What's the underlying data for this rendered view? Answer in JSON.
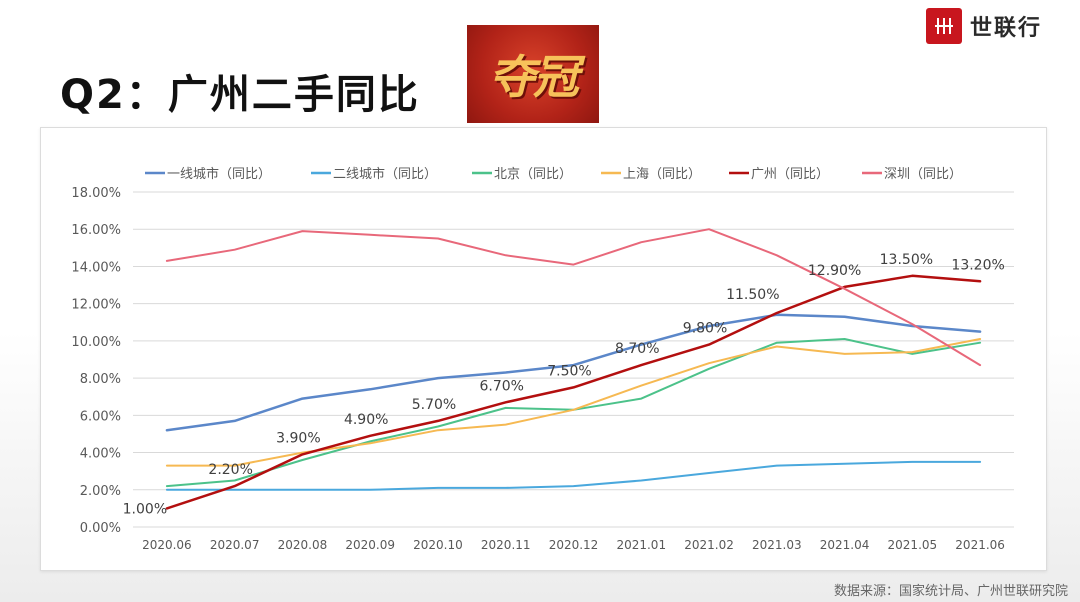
{
  "slide": {
    "title": "Q2：广州二手同比",
    "badge": "夺冠",
    "logo_text": "世联行",
    "source": "数据来源：国家统计局、广州世联研究院"
  },
  "chart_data": {
    "type": "line",
    "categories": [
      "2020.06",
      "2020.07",
      "2020.08",
      "2020.09",
      "2020.10",
      "2020.11",
      "2020.12",
      "2021.01",
      "2021.02",
      "2021.03",
      "2021.04",
      "2021.05",
      "2021.06"
    ],
    "yticks": [
      "0.00%",
      "2.00%",
      "4.00%",
      "6.00%",
      "8.00%",
      "10.00%",
      "12.00%",
      "14.00%",
      "16.00%",
      "18.00%"
    ],
    "ylim": [
      0,
      18
    ],
    "grid": true,
    "legend_position": "top",
    "series": [
      {
        "name": "一线城市（同比）",
        "color": "#5b87c9",
        "width": 2.5,
        "values": [
          5.2,
          5.7,
          6.9,
          7.4,
          8.0,
          8.3,
          8.7,
          9.8,
          10.8,
          11.4,
          11.3,
          10.8,
          10.5
        ]
      },
      {
        "name": "二线城市（同比）",
        "color": "#4aa8dd",
        "width": 2,
        "values": [
          2.0,
          2.0,
          2.0,
          2.0,
          2.1,
          2.1,
          2.2,
          2.5,
          2.9,
          3.3,
          3.4,
          3.5,
          3.5
        ]
      },
      {
        "name": "北京（同比）",
        "color": "#4cc28a",
        "width": 2,
        "values": [
          2.2,
          2.5,
          3.6,
          4.6,
          5.4,
          6.4,
          6.3,
          6.9,
          8.5,
          9.9,
          10.1,
          9.3,
          9.9
        ]
      },
      {
        "name": "上海（同比）",
        "color": "#f6b952",
        "width": 2,
        "values": [
          3.3,
          3.3,
          4.0,
          4.5,
          5.2,
          5.5,
          6.3,
          7.6,
          8.8,
          9.7,
          9.3,
          9.4,
          10.1
        ]
      },
      {
        "name": "广州（同比）",
        "color": "#b30f0f",
        "width": 2.5,
        "values": [
          1.0,
          2.2,
          3.9,
          4.9,
          5.7,
          6.7,
          7.5,
          8.7,
          9.8,
          11.5,
          12.9,
          13.5,
          13.2
        ],
        "data_labels": [
          "1.00%",
          "2.20%",
          "3.90%",
          "4.90%",
          "5.70%",
          "6.70%",
          "7.50%",
          "8.70%",
          "9.80%",
          "11.50%",
          "12.90%",
          "13.50%",
          "13.20%"
        ]
      },
      {
        "name": "深圳（同比）",
        "color": "#e8687a",
        "width": 2,
        "values": [
          14.3,
          14.9,
          15.9,
          15.7,
          15.5,
          14.6,
          14.1,
          15.3,
          16.0,
          14.6,
          12.8,
          10.9,
          8.7
        ]
      }
    ]
  }
}
